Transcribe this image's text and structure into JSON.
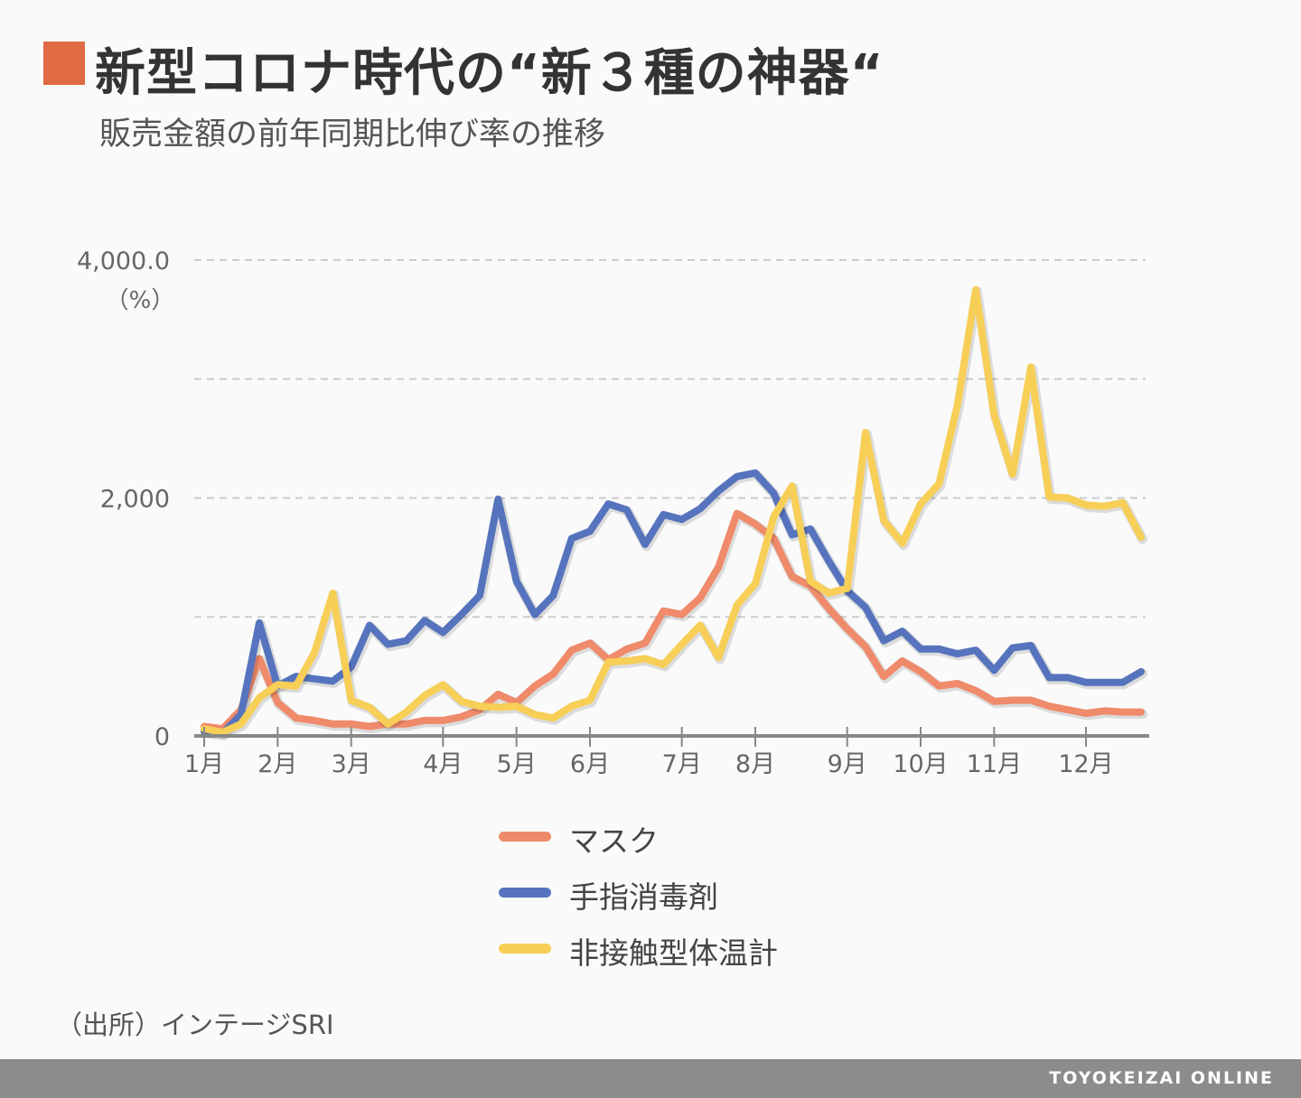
{
  "title": "新型コロナ時代の“新３種の神器“",
  "subtitle": "販売金額の前年同期比伸び率の推移",
  "source": "（出所）インテージSRI",
  "brand": "TOYOKEIZAI ONLINE",
  "colors": {
    "title_mark": "#df6a43",
    "mask": "#ef8a6a",
    "sanitizer": "#5674bd",
    "thermometer": "#f7cf56",
    "grid": "#cccccc",
    "axis": "#888888"
  },
  "chart_data": {
    "type": "line",
    "title": "",
    "xlabel": "",
    "ylabel": "（%）",
    "ylim": [
      0,
      4000
    ],
    "yticks": [
      {
        "value": 0,
        "label": "0"
      },
      {
        "value": 1000,
        "label": ""
      },
      {
        "value": 2000,
        "label": "2,000"
      },
      {
        "value": 3000,
        "label": ""
      },
      {
        "value": 4000,
        "label": "4,000.0"
      }
    ],
    "xlim": [
      0,
      51
    ],
    "xticks": [
      {
        "x": 0,
        "label": "1月"
      },
      {
        "x": 4,
        "label": "2月"
      },
      {
        "x": 8,
        "label": "3月"
      },
      {
        "x": 13,
        "label": "4月"
      },
      {
        "x": 17,
        "label": "5月"
      },
      {
        "x": 21,
        "label": "6月"
      },
      {
        "x": 26,
        "label": "7月"
      },
      {
        "x": 30,
        "label": "8月"
      },
      {
        "x": 35,
        "label": "9月"
      },
      {
        "x": 39,
        "label": "10月"
      },
      {
        "x": 43,
        "label": "11月"
      },
      {
        "x": 48,
        "label": "12月"
      }
    ],
    "grid": true,
    "legend_position": "bottom-center",
    "series": [
      {
        "name": "マスク",
        "color": "#ef8a6a",
        "values": [
          80,
          60,
          220,
          650,
          280,
          150,
          130,
          100,
          100,
          80,
          100,
          100,
          130,
          130,
          160,
          220,
          350,
          280,
          420,
          520,
          720,
          780,
          640,
          730,
          780,
          1050,
          1020,
          1160,
          1420,
          1870,
          1780,
          1660,
          1340,
          1260,
          1070,
          900,
          750,
          500,
          630,
          540,
          420,
          440,
          380,
          290,
          300,
          300,
          250,
          220,
          190,
          210,
          200,
          200
        ]
      },
      {
        "name": "手指消毒剤",
        "color": "#5674bd",
        "values": [
          40,
          20,
          180,
          950,
          420,
          500,
          480,
          460,
          580,
          930,
          770,
          800,
          970,
          870,
          1020,
          1180,
          1990,
          1300,
          1020,
          1180,
          1660,
          1720,
          1950,
          1900,
          1610,
          1860,
          1820,
          1910,
          2060,
          2180,
          2210,
          2040,
          1690,
          1740,
          1470,
          1220,
          1080,
          800,
          880,
          730,
          730,
          690,
          720,
          550,
          740,
          760,
          490,
          490,
          450,
          450,
          450,
          540
        ]
      },
      {
        "name": "非接触型体温計",
        "color": "#f7cf56",
        "values": [
          60,
          30,
          100,
          320,
          430,
          420,
          700,
          1200,
          300,
          240,
          100,
          200,
          340,
          430,
          290,
          250,
          240,
          250,
          180,
          150,
          250,
          300,
          620,
          630,
          650,
          600,
          770,
          930,
          660,
          1100,
          1280,
          1840,
          2100,
          1300,
          1200,
          1240,
          2550,
          1810,
          1620,
          1950,
          2120,
          2780,
          3750,
          2700,
          2200,
          3100,
          2010,
          2000,
          1940,
          1930,
          1960,
          1670
        ]
      }
    ]
  }
}
